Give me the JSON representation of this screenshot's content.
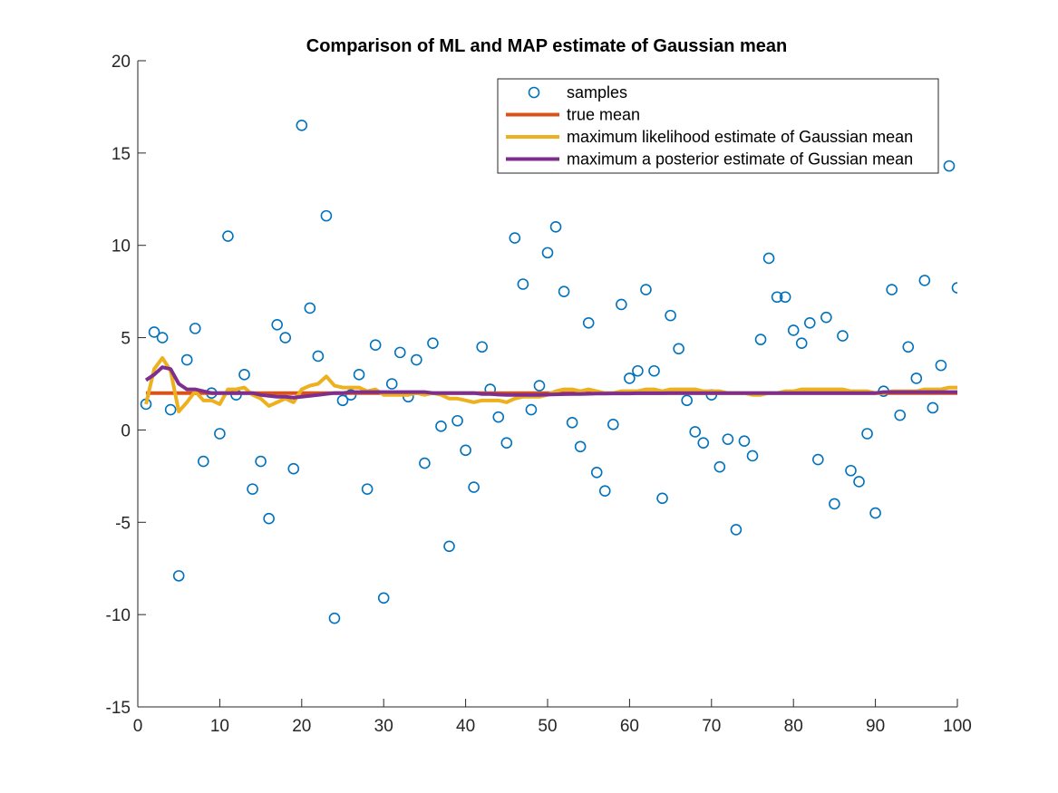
{
  "chart_data": {
    "type": "line",
    "title": "Comparison of ML and MAP estimate of Gaussian mean",
    "xlabel": "",
    "ylabel": "",
    "xlim": [
      0,
      100
    ],
    "ylim": [
      -15,
      20
    ],
    "xticks": [
      0,
      10,
      20,
      30,
      40,
      50,
      60,
      70,
      80,
      90,
      100
    ],
    "yticks": [
      -15,
      -10,
      -5,
      0,
      5,
      10,
      15,
      20
    ],
    "grid": false,
    "legend": {
      "placement": "top-right"
    },
    "series": [
      {
        "name": "samples",
        "kind": "scatter-marker",
        "color": "#0072BD",
        "x": [
          1,
          2,
          3,
          4,
          5,
          6,
          7,
          8,
          9,
          10,
          11,
          12,
          13,
          14,
          15,
          16,
          17,
          18,
          19,
          20,
          21,
          22,
          23,
          24,
          25,
          26,
          27,
          28,
          29,
          30,
          31,
          32,
          33,
          34,
          35,
          36,
          37,
          38,
          39,
          40,
          41,
          42,
          43,
          44,
          45,
          46,
          47,
          48,
          49,
          50,
          51,
          52,
          53,
          54,
          55,
          56,
          57,
          58,
          59,
          60,
          61,
          62,
          63,
          64,
          65,
          66,
          67,
          68,
          69,
          70,
          71,
          72,
          73,
          74,
          75,
          76,
          77,
          78,
          79,
          80,
          81,
          82,
          83,
          84,
          85,
          86,
          87,
          88,
          89,
          90,
          91,
          92,
          93,
          94,
          95,
          96,
          97,
          98,
          99,
          100
        ],
        "y": [
          1.4,
          5.3,
          5.0,
          1.1,
          -7.9,
          3.8,
          5.5,
          -1.7,
          2.0,
          -0.2,
          10.5,
          1.9,
          3.0,
          -3.2,
          -1.7,
          -4.8,
          5.7,
          5.0,
          -2.1,
          16.5,
          6.6,
          4.0,
          11.6,
          -10.2,
          1.6,
          1.9,
          3.0,
          -3.2,
          4.6,
          -9.1,
          2.5,
          4.2,
          1.8,
          3.8,
          -1.8,
          4.7,
          0.2,
          -6.3,
          0.5,
          -1.1,
          -3.1,
          4.5,
          2.2,
          0.7,
          -0.7,
          10.4,
          7.9,
          1.1,
          2.4,
          9.6,
          11.0,
          7.5,
          0.4,
          -0.9,
          5.8,
          -2.3,
          -3.3,
          0.3,
          6.8,
          2.8,
          3.2,
          7.6,
          3.2,
          -3.7,
          6.2,
          4.4,
          1.6,
          -0.1,
          -0.7,
          1.9,
          -2.0,
          -0.5,
          -5.4,
          -0.6,
          -1.4,
          4.9,
          9.3,
          7.2,
          7.2,
          5.4,
          4.7,
          5.8,
          -1.6,
          6.1,
          -4.0,
          5.1,
          -2.2,
          -2.8,
          -0.2,
          -4.5,
          2.1,
          7.6,
          0.8,
          4.5,
          2.8,
          8.1,
          1.2,
          3.5,
          14.3,
          7.7
        ]
      },
      {
        "name": "true mean",
        "kind": "line",
        "color": "#D95319",
        "x": [
          1,
          100
        ],
        "y": [
          2.0,
          2.0
        ]
      },
      {
        "name": "maximum likelihood estimate of Gaussian mean",
        "kind": "line",
        "color": "#EDB120",
        "x": [
          1,
          2,
          3,
          4,
          5,
          6,
          7,
          8,
          9,
          10,
          11,
          12,
          13,
          14,
          15,
          16,
          17,
          18,
          19,
          20,
          21,
          22,
          23,
          24,
          25,
          26,
          27,
          28,
          29,
          30,
          31,
          32,
          33,
          34,
          35,
          36,
          37,
          38,
          39,
          40,
          41,
          42,
          43,
          44,
          45,
          46,
          47,
          48,
          49,
          50,
          51,
          52,
          53,
          54,
          55,
          56,
          57,
          58,
          59,
          60,
          61,
          62,
          63,
          64,
          65,
          66,
          67,
          68,
          69,
          70,
          71,
          72,
          73,
          74,
          75,
          76,
          77,
          78,
          79,
          80,
          81,
          82,
          83,
          84,
          85,
          86,
          87,
          88,
          89,
          90,
          91,
          92,
          93,
          94,
          95,
          96,
          97,
          98,
          99,
          100
        ],
        "y": [
          1.4,
          3.3,
          3.9,
          3.2,
          1.0,
          1.5,
          2.1,
          1.6,
          1.6,
          1.4,
          2.2,
          2.2,
          2.3,
          1.9,
          1.7,
          1.3,
          1.5,
          1.7,
          1.5,
          2.2,
          2.4,
          2.5,
          2.9,
          2.4,
          2.3,
          2.3,
          2.3,
          2.1,
          2.2,
          1.9,
          1.9,
          1.9,
          1.9,
          2.0,
          1.9,
          2.0,
          1.9,
          1.7,
          1.7,
          1.6,
          1.5,
          1.6,
          1.6,
          1.6,
          1.5,
          1.7,
          1.8,
          1.8,
          1.8,
          1.9,
          2.1,
          2.2,
          2.2,
          2.1,
          2.2,
          2.1,
          2.0,
          2.0,
          2.1,
          2.1,
          2.1,
          2.2,
          2.2,
          2.1,
          2.2,
          2.2,
          2.2,
          2.2,
          2.1,
          2.1,
          2.1,
          2.0,
          2.0,
          2.0,
          1.9,
          1.9,
          2.0,
          2.0,
          2.1,
          2.1,
          2.2,
          2.2,
          2.2,
          2.2,
          2.2,
          2.2,
          2.1,
          2.1,
          2.1,
          2.0,
          2.0,
          2.1,
          2.1,
          2.1,
          2.1,
          2.2,
          2.2,
          2.2,
          2.3,
          2.3
        ]
      },
      {
        "name": "maximum a posterior estimate of Gussian mean",
        "kind": "line",
        "color": "#7E2F8E",
        "x": [
          1,
          2,
          3,
          4,
          5,
          6,
          7,
          8,
          9,
          10,
          11,
          12,
          13,
          14,
          15,
          16,
          17,
          18,
          19,
          20,
          21,
          22,
          23,
          24,
          25,
          26,
          27,
          28,
          29,
          30,
          31,
          32,
          33,
          34,
          35,
          36,
          37,
          38,
          39,
          40,
          41,
          42,
          43,
          44,
          45,
          46,
          47,
          48,
          49,
          50,
          51,
          52,
          53,
          54,
          55,
          56,
          57,
          58,
          59,
          60,
          61,
          62,
          63,
          64,
          65,
          66,
          67,
          68,
          69,
          70,
          71,
          72,
          73,
          74,
          75,
          76,
          77,
          78,
          79,
          80,
          81,
          82,
          83,
          84,
          85,
          86,
          87,
          88,
          89,
          90,
          91,
          92,
          93,
          94,
          95,
          96,
          97,
          98,
          99,
          100
        ],
        "y": [
          2.7,
          3.0,
          3.4,
          3.3,
          2.5,
          2.2,
          2.2,
          2.1,
          2.0,
          2.0,
          2.0,
          2.0,
          2.0,
          2.0,
          1.9,
          1.85,
          1.8,
          1.8,
          1.75,
          1.8,
          1.85,
          1.9,
          1.95,
          2.0,
          2.0,
          2.05,
          2.05,
          2.05,
          2.05,
          2.05,
          2.05,
          2.05,
          2.05,
          2.05,
          2.05,
          2.0,
          2.0,
          2.0,
          2.0,
          2.0,
          2.0,
          1.95,
          1.95,
          1.92,
          1.9,
          1.9,
          1.9,
          1.9,
          1.9,
          1.92,
          1.93,
          1.94,
          1.95,
          1.95,
          1.96,
          1.97,
          1.97,
          1.98,
          1.98,
          1.98,
          1.99,
          1.99,
          1.99,
          1.99,
          2.0,
          2.0,
          2.0,
          2.0,
          2.0,
          2.0,
          2.0,
          2.0,
          2.0,
          2.0,
          2.0,
          2.0,
          2.0,
          2.0,
          2.0,
          2.0,
          2.0,
          2.0,
          2.0,
          2.0,
          2.0,
          2.0,
          2.0,
          2.0,
          2.0,
          2.0,
          2.05,
          2.05,
          2.05,
          2.05,
          2.05,
          2.05,
          2.05,
          2.05,
          2.05,
          2.05
        ]
      }
    ]
  }
}
